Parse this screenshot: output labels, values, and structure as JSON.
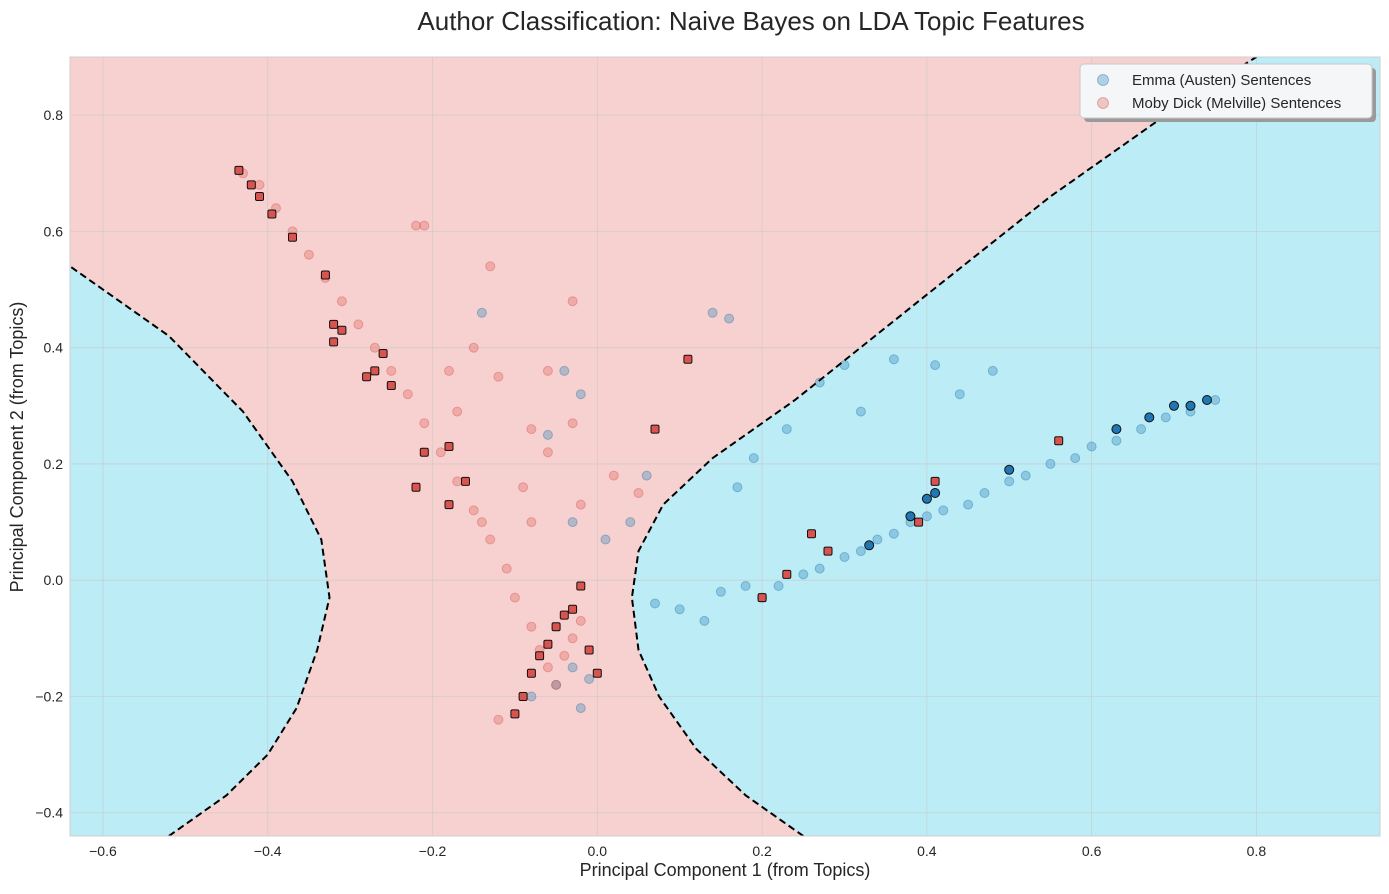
{
  "colors": {
    "region_austen": "#bcecf5",
    "region_melville": "#f7d1cf",
    "austen_point": "#1f77b4",
    "melville_point": "#d9534f",
    "boundary": "#000000",
    "grid": "#c8c8c8"
  },
  "chart_data": {
    "type": "scatter",
    "title": "Author Classification: Naive Bayes on LDA Topic Features",
    "xlabel": "Principal Component 1 (from Topics)",
    "ylabel": "Principal Component 2 (from Topics)",
    "xlim": [
      -0.64,
      0.95
    ],
    "ylim": [
      -0.44,
      0.9
    ],
    "xticks": [
      -0.6,
      -0.4,
      -0.2,
      0.0,
      0.2,
      0.4,
      0.6,
      0.8
    ],
    "xtick_labels": [
      "−0.6",
      "−0.4",
      "−0.2",
      "0.0",
      "0.2",
      "0.4",
      "0.6",
      "0.8"
    ],
    "yticks": [
      -0.4,
      -0.2,
      0.0,
      0.2,
      0.4,
      0.6,
      0.8
    ],
    "ytick_labels": [
      "−0.4",
      "−0.2",
      "0.0",
      "0.2",
      "0.4",
      "0.6",
      "0.8"
    ],
    "grid": true,
    "legend_position": "top-right",
    "decision_boundary": {
      "style": "dashed",
      "left_branch": [
        [
          -0.52,
          -0.44
        ],
        [
          -0.45,
          -0.37
        ],
        [
          -0.4,
          -0.3
        ],
        [
          -0.365,
          -0.22
        ],
        [
          -0.34,
          -0.12
        ],
        [
          -0.325,
          -0.03
        ],
        [
          -0.335,
          0.07
        ],
        [
          -0.37,
          0.17
        ],
        [
          -0.43,
          0.29
        ],
        [
          -0.52,
          0.42
        ],
        [
          -0.64,
          0.54
        ]
      ],
      "right_branch": [
        [
          0.25,
          -0.44
        ],
        [
          0.18,
          -0.37
        ],
        [
          0.12,
          -0.29
        ],
        [
          0.075,
          -0.2
        ],
        [
          0.05,
          -0.12
        ],
        [
          0.042,
          -0.03
        ],
        [
          0.05,
          0.05
        ],
        [
          0.08,
          0.13
        ],
        [
          0.14,
          0.21
        ],
        [
          0.24,
          0.31
        ],
        [
          0.39,
          0.48
        ],
        [
          0.55,
          0.66
        ],
        [
          0.72,
          0.83
        ],
        [
          0.8,
          0.9
        ]
      ]
    },
    "series": [
      {
        "name": "Emma (Austen) Sentences",
        "color": "#1f77b4",
        "points": [
          [
            0.07,
            -0.04
          ],
          [
            0.1,
            -0.05
          ],
          [
            0.13,
            -0.07
          ],
          [
            0.15,
            -0.02
          ],
          [
            0.18,
            -0.01
          ],
          [
            0.2,
            -0.03
          ],
          [
            0.22,
            -0.01
          ],
          [
            0.25,
            0.01
          ],
          [
            0.27,
            0.02
          ],
          [
            0.3,
            0.04
          ],
          [
            0.32,
            0.05
          ],
          [
            0.34,
            0.07
          ],
          [
            0.36,
            0.08
          ],
          [
            0.38,
            0.1
          ],
          [
            0.4,
            0.11
          ],
          [
            0.42,
            0.12
          ],
          [
            0.45,
            0.13
          ],
          [
            0.47,
            0.15
          ],
          [
            0.5,
            0.17
          ],
          [
            0.52,
            0.18
          ],
          [
            0.55,
            0.2
          ],
          [
            0.58,
            0.21
          ],
          [
            0.6,
            0.23
          ],
          [
            0.63,
            0.24
          ],
          [
            0.66,
            0.26
          ],
          [
            0.69,
            0.28
          ],
          [
            0.72,
            0.29
          ],
          [
            0.75,
            0.31
          ],
          [
            0.14,
            0.46
          ],
          [
            0.16,
            0.45
          ],
          [
            0.3,
            0.37
          ],
          [
            0.36,
            0.38
          ],
          [
            0.41,
            0.37
          ],
          [
            0.48,
            0.36
          ],
          [
            0.44,
            0.32
          ],
          [
            0.32,
            0.29
          ],
          [
            0.27,
            0.34
          ],
          [
            0.23,
            0.26
          ],
          [
            0.19,
            0.21
          ],
          [
            0.17,
            0.16
          ],
          [
            -0.14,
            0.46
          ],
          [
            -0.04,
            0.36
          ],
          [
            -0.02,
            0.32
          ],
          [
            -0.06,
            0.25
          ],
          [
            -0.03,
            0.1
          ],
          [
            0.01,
            0.07
          ],
          [
            0.04,
            0.1
          ],
          [
            0.06,
            0.18
          ],
          [
            -0.02,
            -0.22
          ],
          [
            -0.05,
            -0.18
          ],
          [
            -0.08,
            -0.2
          ],
          [
            -0.03,
            -0.15
          ],
          [
            -0.01,
            -0.17
          ]
        ],
        "highlighted": [
          [
            0.63,
            0.26
          ],
          [
            0.67,
            0.28
          ],
          [
            0.7,
            0.3
          ],
          [
            0.72,
            0.3
          ],
          [
            0.74,
            0.31
          ],
          [
            0.5,
            0.19
          ],
          [
            0.41,
            0.15
          ],
          [
            0.4,
            0.14
          ],
          [
            0.38,
            0.11
          ],
          [
            0.33,
            0.06
          ]
        ]
      },
      {
        "name": "Moby Dick (Melville) Sentences",
        "color": "#d9534f",
        "points": [
          [
            -0.43,
            0.7
          ],
          [
            -0.41,
            0.68
          ],
          [
            -0.39,
            0.64
          ],
          [
            -0.37,
            0.6
          ],
          [
            -0.35,
            0.56
          ],
          [
            -0.33,
            0.52
          ],
          [
            -0.31,
            0.48
          ],
          [
            -0.29,
            0.44
          ],
          [
            -0.27,
            0.4
          ],
          [
            -0.25,
            0.36
          ],
          [
            -0.23,
            0.32
          ],
          [
            -0.21,
            0.27
          ],
          [
            -0.19,
            0.22
          ],
          [
            -0.17,
            0.17
          ],
          [
            -0.15,
            0.12
          ],
          [
            -0.13,
            0.07
          ],
          [
            -0.11,
            0.02
          ],
          [
            -0.1,
            -0.03
          ],
          [
            -0.08,
            -0.08
          ],
          [
            -0.07,
            -0.12
          ],
          [
            -0.06,
            -0.15
          ],
          [
            -0.05,
            -0.18
          ],
          [
            -0.04,
            -0.13
          ],
          [
            -0.03,
            -0.1
          ],
          [
            -0.02,
            -0.07
          ],
          [
            -0.22,
            0.61
          ],
          [
            -0.21,
            0.61
          ],
          [
            -0.13,
            0.54
          ],
          [
            -0.03,
            0.48
          ],
          [
            -0.15,
            0.4
          ],
          [
            -0.18,
            0.36
          ],
          [
            -0.12,
            0.35
          ],
          [
            -0.06,
            0.36
          ],
          [
            -0.17,
            0.29
          ],
          [
            -0.08,
            0.26
          ],
          [
            -0.03,
            0.27
          ],
          [
            -0.06,
            0.22
          ],
          [
            -0.09,
            0.16
          ],
          [
            -0.14,
            0.1
          ],
          [
            -0.08,
            0.1
          ],
          [
            -0.02,
            0.13
          ],
          [
            0.02,
            0.18
          ],
          [
            0.05,
            0.15
          ],
          [
            -0.12,
            -0.24
          ]
        ],
        "highlighted": [
          [
            -0.435,
            0.705
          ],
          [
            -0.42,
            0.68
          ],
          [
            -0.41,
            0.66
          ],
          [
            -0.395,
            0.63
          ],
          [
            -0.37,
            0.59
          ],
          [
            -0.33,
            0.525
          ],
          [
            -0.32,
            0.44
          ],
          [
            -0.31,
            0.43
          ],
          [
            -0.32,
            0.41
          ],
          [
            -0.26,
            0.39
          ],
          [
            -0.27,
            0.36
          ],
          [
            -0.28,
            0.35
          ],
          [
            -0.25,
            0.335
          ],
          [
            -0.18,
            0.23
          ],
          [
            -0.21,
            0.22
          ],
          [
            -0.16,
            0.17
          ],
          [
            -0.22,
            0.16
          ],
          [
            -0.18,
            0.13
          ],
          [
            -0.02,
            -0.01
          ],
          [
            -0.03,
            -0.05
          ],
          [
            -0.04,
            -0.06
          ],
          [
            -0.05,
            -0.08
          ],
          [
            -0.06,
            -0.11
          ],
          [
            -0.07,
            -0.13
          ],
          [
            -0.08,
            -0.16
          ],
          [
            -0.09,
            -0.2
          ],
          [
            -0.1,
            -0.23
          ],
          [
            -0.01,
            -0.12
          ],
          [
            0.0,
            -0.16
          ],
          [
            0.56,
            0.24
          ],
          [
            0.41,
            0.17
          ],
          [
            0.39,
            0.1
          ],
          [
            0.26,
            0.08
          ],
          [
            0.28,
            0.05
          ],
          [
            0.23,
            0.01
          ],
          [
            0.2,
            -0.03
          ],
          [
            0.07,
            0.26
          ],
          [
            0.11,
            0.38
          ]
        ]
      }
    ]
  }
}
